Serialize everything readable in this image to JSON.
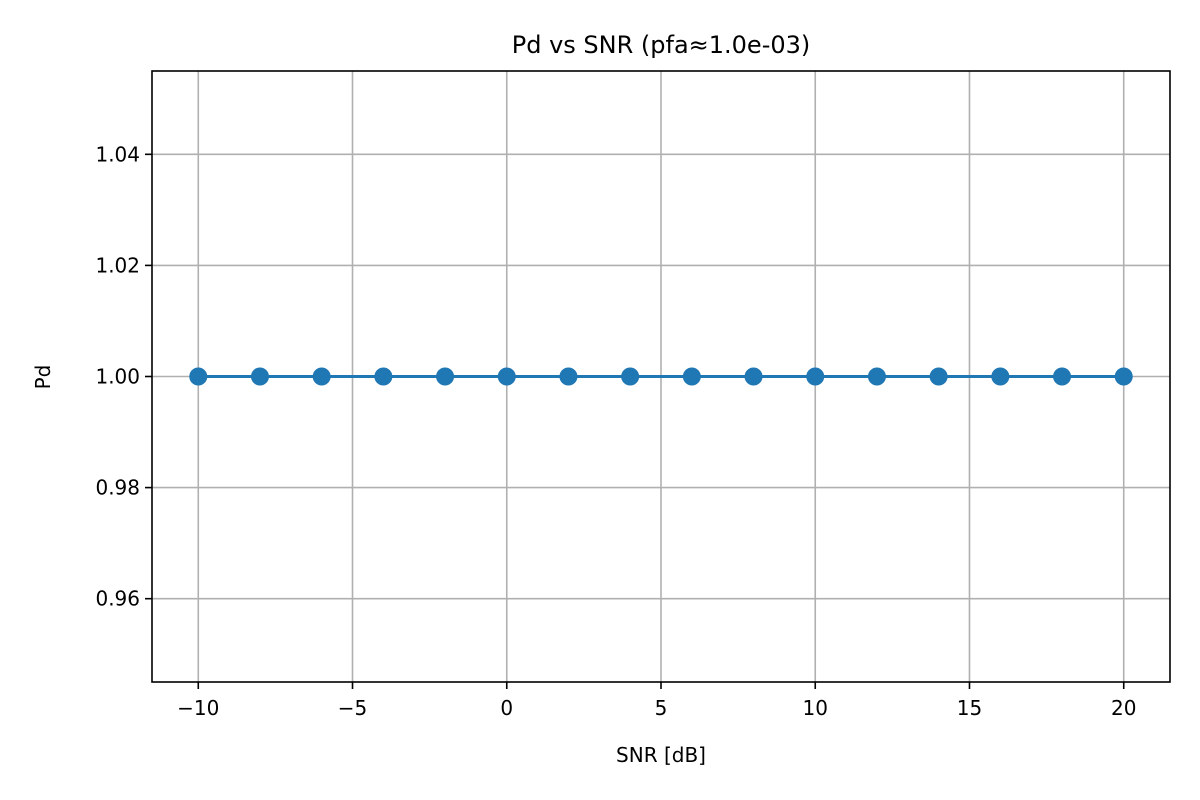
{
  "chart_data": {
    "type": "line",
    "title": "Pd vs SNR (pfa≈1.0e-03)",
    "xlabel": "SNR [dB]",
    "ylabel": "Pd",
    "xlim": [
      -11.5,
      21.5
    ],
    "ylim": [
      0.945,
      1.055
    ],
    "x_ticks": [
      -10,
      -5,
      0,
      5,
      10,
      15,
      20
    ],
    "x_tick_labels": [
      "−10",
      "−5",
      "0",
      "5",
      "10",
      "15",
      "20"
    ],
    "y_ticks": [
      0.96,
      0.98,
      1.0,
      1.02,
      1.04
    ],
    "y_tick_labels": [
      "0.96",
      "0.98",
      "1.00",
      "1.02",
      "1.04"
    ],
    "grid": true,
    "legend": "none",
    "series": [
      {
        "color": "#1f77b4",
        "marker": "circle",
        "x": [
          -10,
          -8,
          -6,
          -4,
          -2,
          0,
          2,
          4,
          6,
          8,
          10,
          12,
          14,
          16,
          18,
          20
        ],
        "y": [
          1.0,
          1.0,
          1.0,
          1.0,
          1.0,
          1.0,
          1.0,
          1.0,
          1.0,
          1.0,
          1.0,
          1.0,
          1.0,
          1.0,
          1.0,
          1.0
        ]
      }
    ]
  }
}
